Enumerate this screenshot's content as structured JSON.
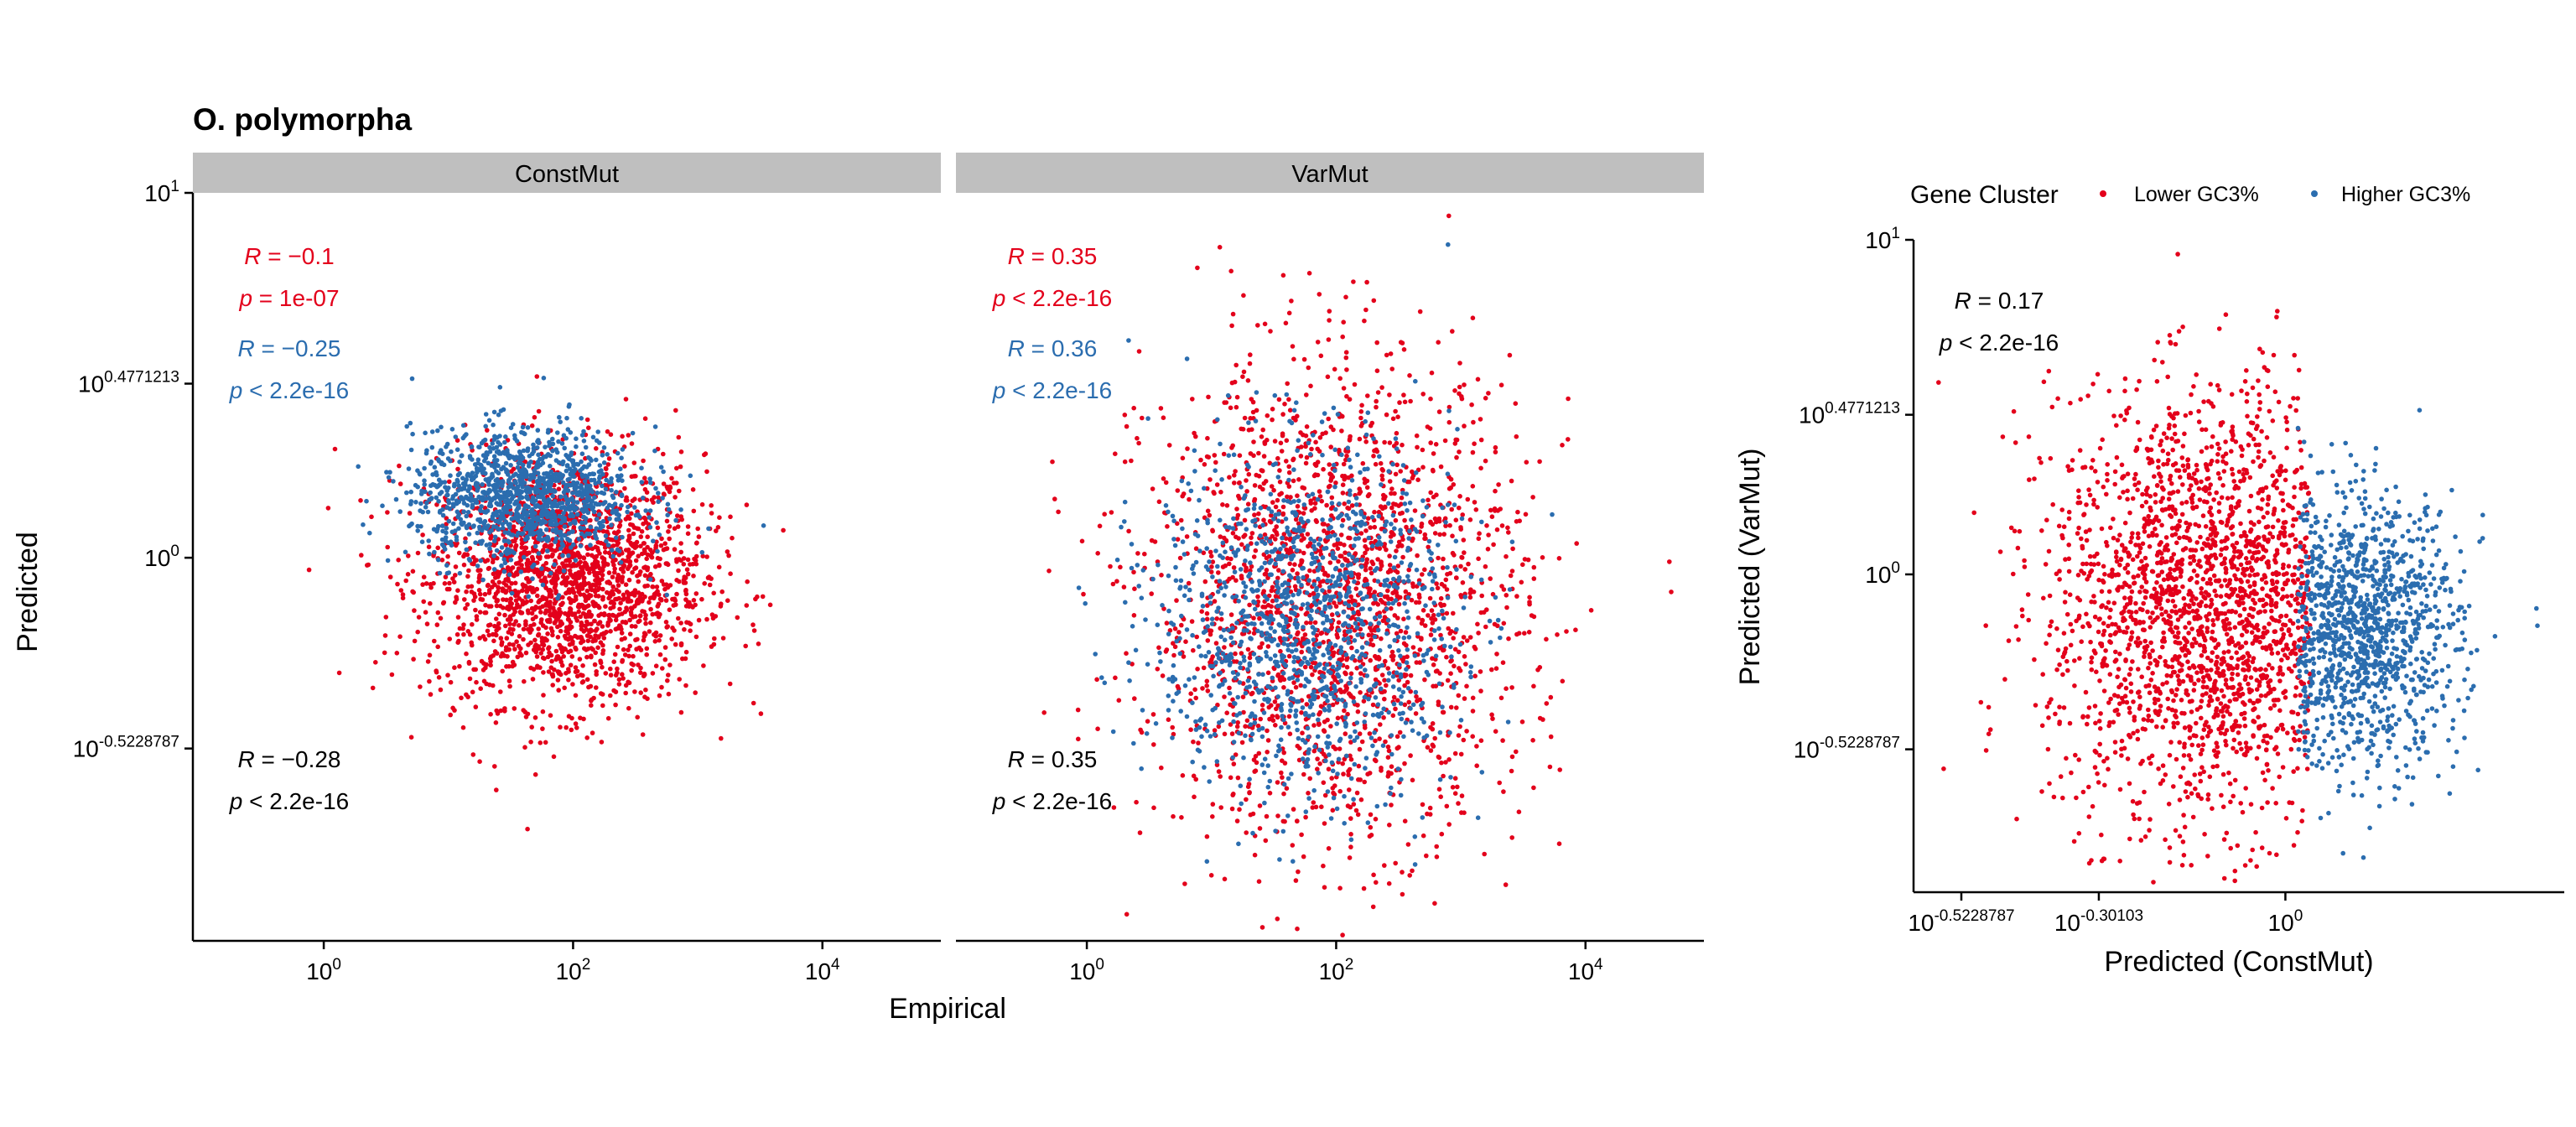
{
  "figure_title": "O. polymorpha",
  "colors": {
    "lower_gc3": "#E3001B",
    "higher_gc3": "#2B6DAF",
    "strip_bg": "#BFBFBF",
    "axis": "#000000"
  },
  "legend": {
    "title": "Gene Cluster",
    "items": [
      {
        "label": "Lower GC3%",
        "color": "#E3001B"
      },
      {
        "label": "Higher GC3%",
        "color": "#2B6DAF"
      }
    ],
    "position": "top"
  },
  "chart_data": [
    {
      "type": "scatter",
      "panel": "ConstMut",
      "strip_label": "ConstMut",
      "x_scale": "log10",
      "y_scale": "log10",
      "xlim_log10": [
        -1.05,
        4.95
      ],
      "ylim_log10": [
        -1.05,
        1.0
      ],
      "x_ticks": [
        {
          "base": "10",
          "exp": "0",
          "log10": 0
        },
        {
          "base": "10",
          "exp": "2",
          "log10": 2
        },
        {
          "base": "10",
          "exp": "4",
          "log10": 4
        }
      ],
      "y_ticks": [
        {
          "base": "10",
          "exp": "1",
          "log10": 1
        },
        {
          "base": "10",
          "exp": "0.4771213",
          "log10": 0.4771213
        },
        {
          "base": "10",
          "exp": "0",
          "log10": 0
        },
        {
          "base": "10",
          "exp": "-0.5228787",
          "log10": -0.5228787
        }
      ],
      "series": [
        {
          "name": "Lower GC3%",
          "color": "#E3001B",
          "n_points": 2100,
          "center_log10": [
            1.95,
            -0.06
          ],
          "spread_log10": [
            0.55,
            0.17
          ]
        },
        {
          "name": "Higher GC3%",
          "color": "#2B6DAF",
          "n_points": 1200,
          "center_log10": [
            1.6,
            0.17
          ],
          "spread_log10": [
            0.45,
            0.09
          ]
        }
      ],
      "annotations": [
        {
          "r": "R = −0.1",
          "p": "p = 1e-07",
          "color": "#E3001B",
          "row": 1
        },
        {
          "r": "R = −0.25",
          "p": "p < 2.2e-16",
          "color": "#2B6DAF",
          "row": 2
        },
        {
          "r": "R = −0.28",
          "p": "p < 2.2e-16",
          "color": "#000000",
          "row": 3
        }
      ]
    },
    {
      "type": "scatter",
      "panel": "VarMut",
      "strip_label": "VarMut",
      "x_scale": "log10",
      "y_scale": "log10",
      "xlim_log10": [
        -1.05,
        4.95
      ],
      "ylim_log10": [
        -1.05,
        1.0
      ],
      "x_ticks": [
        {
          "base": "10",
          "exp": "0",
          "log10": 0
        },
        {
          "base": "10",
          "exp": "2",
          "log10": 2
        },
        {
          "base": "10",
          "exp": "4",
          "log10": 4
        }
      ],
      "series": [
        {
          "name": "Lower GC3%",
          "color": "#E3001B",
          "n_points": 2100,
          "center_log10": [
            2.0,
            -0.12
          ],
          "spread_log10": [
            0.75,
            0.32
          ]
        },
        {
          "name": "Higher GC3%",
          "color": "#2B6DAF",
          "n_points": 1200,
          "center_log10": [
            1.75,
            -0.17
          ],
          "spread_log10": [
            0.6,
            0.24
          ]
        }
      ],
      "annotations": [
        {
          "r": "R = 0.35",
          "p": "p < 2.2e-16",
          "color": "#E3001B",
          "row": 1
        },
        {
          "r": "R = 0.36",
          "p": "p < 2.2e-16",
          "color": "#2B6DAF",
          "row": 2
        },
        {
          "r": "R = 0.35",
          "p": "p < 2.2e-16",
          "color": "#000000",
          "row": 3
        }
      ]
    },
    {
      "type": "scatter",
      "panel": "ConstMut vs VarMut",
      "xlabel": "Predicted (ConstMut)",
      "ylabel": "Predicted (VarMut)",
      "x_scale": "log10",
      "y_scale": "log10",
      "xlim_log10": [
        -0.6,
        0.45
      ],
      "ylim_log10": [
        -0.95,
        1.0
      ],
      "x_ticks": [
        {
          "base": "10",
          "exp": "-0.5228787",
          "log10": -0.5228787
        },
        {
          "base": "10",
          "exp": "-0.30103",
          "log10": -0.30103
        },
        {
          "base": "10",
          "exp": "0",
          "log10": 0
        }
      ],
      "y_ticks": [
        {
          "base": "10",
          "exp": "1",
          "log10": 1
        },
        {
          "base": "10",
          "exp": "0.4771213",
          "log10": 0.4771213
        },
        {
          "base": "10",
          "exp": "0",
          "log10": 0
        },
        {
          "base": "10",
          "exp": "-0.5228787",
          "log10": -0.5228787
        }
      ],
      "series": [
        {
          "name": "Lower GC3%",
          "color": "#E3001B",
          "n_points": 2100,
          "center_log10": [
            -0.12,
            -0.1
          ],
          "spread_log10": [
            0.13,
            0.32
          ],
          "x_max_log10": 0.04
        },
        {
          "name": "Higher GC3%",
          "color": "#2B6DAF",
          "n_points": 1200,
          "center_log10": [
            0.12,
            -0.17
          ],
          "spread_log10": [
            0.08,
            0.2
          ],
          "x_min_log10": 0.02
        }
      ],
      "annotations": [
        {
          "r": "R = 0.17",
          "p": "p < 2.2e-16",
          "color": "#000000",
          "row": 1
        }
      ]
    }
  ],
  "shared_axes": {
    "xlabel": "Empirical",
    "ylabel": "Predicted"
  }
}
